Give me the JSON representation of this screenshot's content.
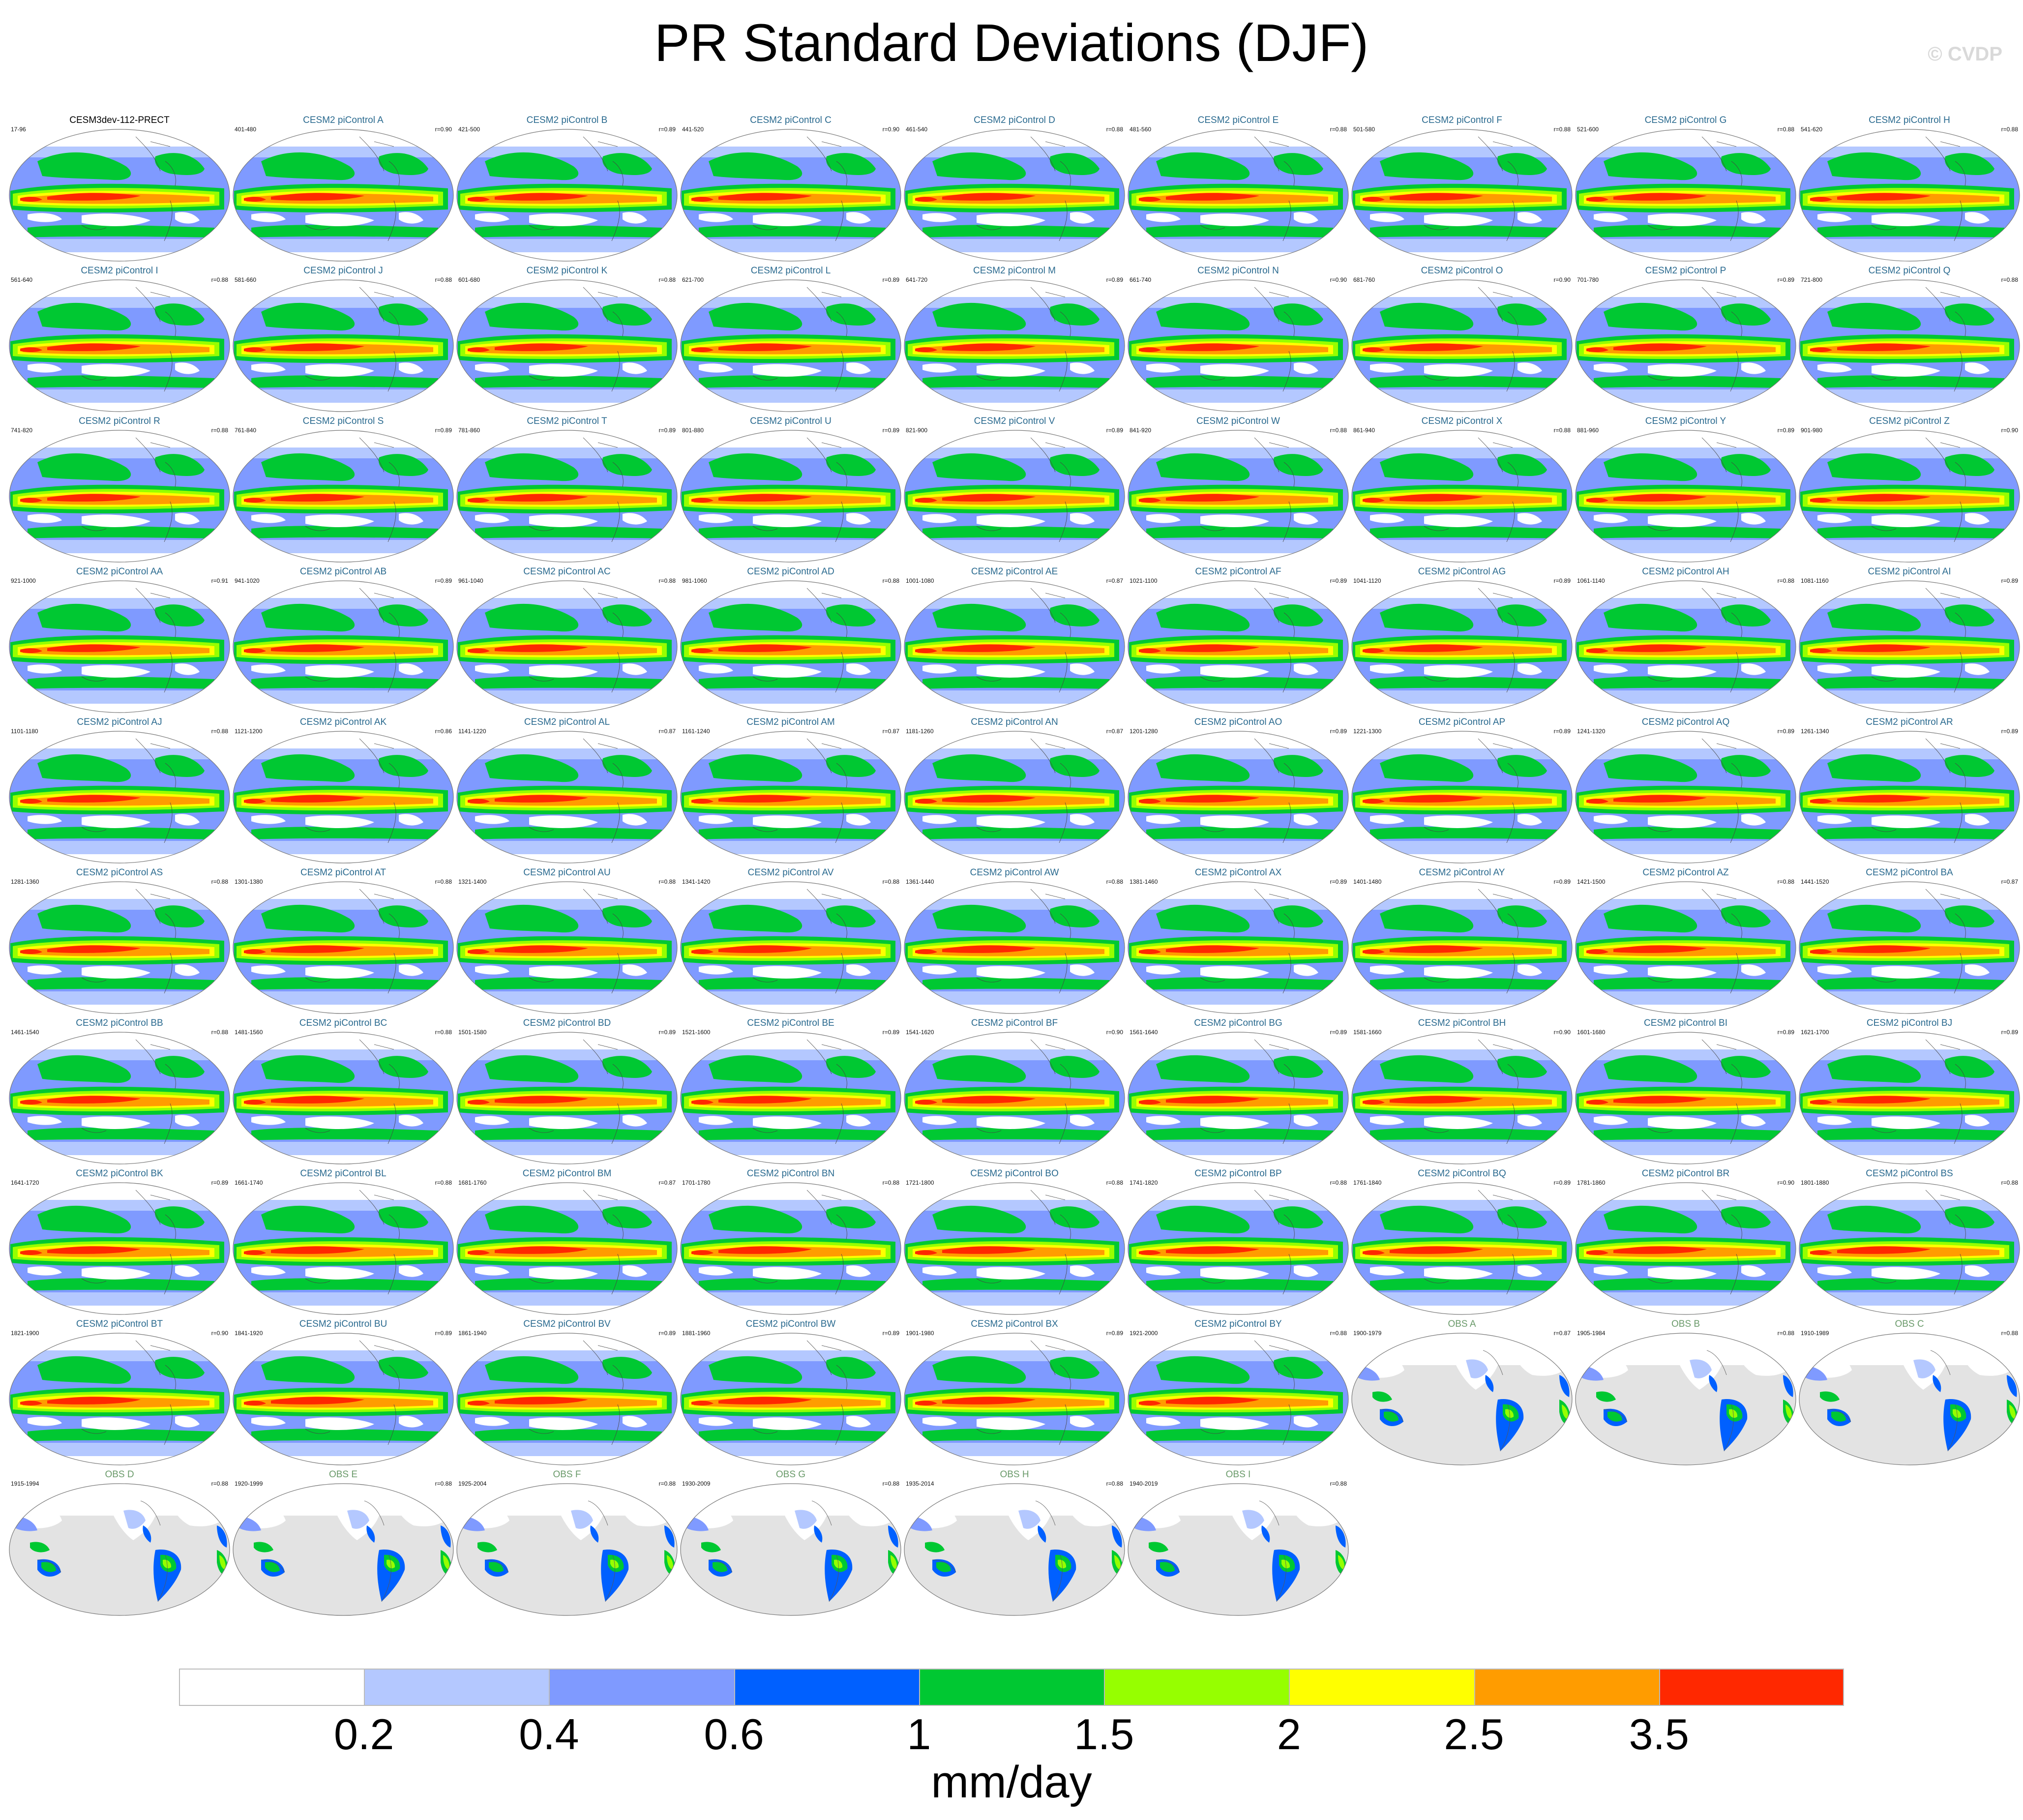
{
  "title": "PR Standard Deviations (DJF)",
  "copyright": "© CVDP",
  "chart_data": {
    "type": "heatmap",
    "title": "PR Standard Deviations (DJF)",
    "projection": "global map panels",
    "colorbar": {
      "unit": "mm/day",
      "levels": [
        "0.2",
        "0.4",
        "0.6",
        "1",
        "1.5",
        "2",
        "2.5",
        "3.5"
      ],
      "colors": [
        "#ffffff",
        "#b4c8ff",
        "#7f9aff",
        "#0060ff",
        "#00c832",
        "#96ff00",
        "#ffff00",
        "#ff9c00",
        "#ff2800"
      ]
    },
    "panels": [
      {
        "title": "CESM3dev-112-PRECT",
        "years": "17-96",
        "r": "",
        "kind": "first"
      },
      {
        "title": "CESM2 piControl A",
        "years": "401-480",
        "r": "r=0.90",
        "kind": "model"
      },
      {
        "title": "CESM2 piControl B",
        "years": "421-500",
        "r": "r=0.89",
        "kind": "model"
      },
      {
        "title": "CESM2 piControl C",
        "years": "441-520",
        "r": "r=0.90",
        "kind": "model"
      },
      {
        "title": "CESM2 piControl D",
        "years": "461-540",
        "r": "r=0.88",
        "kind": "model"
      },
      {
        "title": "CESM2 piControl E",
        "years": "481-560",
        "r": "r=0.88",
        "kind": "model"
      },
      {
        "title": "CESM2 piControl F",
        "years": "501-580",
        "r": "r=0.88",
        "kind": "model"
      },
      {
        "title": "CESM2 piControl G",
        "years": "521-600",
        "r": "r=0.88",
        "kind": "model"
      },
      {
        "title": "CESM2 piControl H",
        "years": "541-620",
        "r": "r=0.88",
        "kind": "model"
      },
      {
        "title": "CESM2 piControl I",
        "years": "561-640",
        "r": "r=0.88",
        "kind": "model"
      },
      {
        "title": "CESM2 piControl J",
        "years": "581-660",
        "r": "r=0.88",
        "kind": "model"
      },
      {
        "title": "CESM2 piControl K",
        "years": "601-680",
        "r": "r=0.88",
        "kind": "model"
      },
      {
        "title": "CESM2 piControl L",
        "years": "621-700",
        "r": "r=0.89",
        "kind": "model"
      },
      {
        "title": "CESM2 piControl M",
        "years": "641-720",
        "r": "r=0.89",
        "kind": "model"
      },
      {
        "title": "CESM2 piControl N",
        "years": "661-740",
        "r": "r=0.90",
        "kind": "model"
      },
      {
        "title": "CESM2 piControl O",
        "years": "681-760",
        "r": "r=0.90",
        "kind": "model"
      },
      {
        "title": "CESM2 piControl P",
        "years": "701-780",
        "r": "r=0.89",
        "kind": "model"
      },
      {
        "title": "CESM2 piControl Q",
        "years": "721-800",
        "r": "r=0.88",
        "kind": "model"
      },
      {
        "title": "CESM2 piControl R",
        "years": "741-820",
        "r": "r=0.88",
        "kind": "model"
      },
      {
        "title": "CESM2 piControl S",
        "years": "761-840",
        "r": "r=0.89",
        "kind": "model"
      },
      {
        "title": "CESM2 piControl T",
        "years": "781-860",
        "r": "r=0.89",
        "kind": "model"
      },
      {
        "title": "CESM2 piControl U",
        "years": "801-880",
        "r": "r=0.89",
        "kind": "model"
      },
      {
        "title": "CESM2 piControl V",
        "years": "821-900",
        "r": "r=0.89",
        "kind": "model"
      },
      {
        "title": "CESM2 piControl W",
        "years": "841-920",
        "r": "r=0.88",
        "kind": "model"
      },
      {
        "title": "CESM2 piControl X",
        "years": "861-940",
        "r": "r=0.88",
        "kind": "model"
      },
      {
        "title": "CESM2 piControl Y",
        "years": "881-960",
        "r": "r=0.89",
        "kind": "model"
      },
      {
        "title": "CESM2 piControl Z",
        "years": "901-980",
        "r": "r=0.90",
        "kind": "model"
      },
      {
        "title": "CESM2 piControl AA",
        "years": "921-1000",
        "r": "r=0.91",
        "kind": "model"
      },
      {
        "title": "CESM2 piControl AB",
        "years": "941-1020",
        "r": "r=0.89",
        "kind": "model"
      },
      {
        "title": "CESM2 piControl AC",
        "years": "961-1040",
        "r": "r=0.88",
        "kind": "model"
      },
      {
        "title": "CESM2 piControl AD",
        "years": "981-1060",
        "r": "r=0.88",
        "kind": "model"
      },
      {
        "title": "CESM2 piControl AE",
        "years": "1001-1080",
        "r": "r=0.87",
        "kind": "model"
      },
      {
        "title": "CESM2 piControl AF",
        "years": "1021-1100",
        "r": "r=0.89",
        "kind": "model"
      },
      {
        "title": "CESM2 piControl AG",
        "years": "1041-1120",
        "r": "r=0.89",
        "kind": "model"
      },
      {
        "title": "CESM2 piControl AH",
        "years": "1061-1140",
        "r": "r=0.88",
        "kind": "model"
      },
      {
        "title": "CESM2 piControl AI",
        "years": "1081-1160",
        "r": "r=0.89",
        "kind": "model"
      },
      {
        "title": "CESM2 piControl AJ",
        "years": "1101-1180",
        "r": "r=0.88",
        "kind": "model"
      },
      {
        "title": "CESM2 piControl AK",
        "years": "1121-1200",
        "r": "r=0.86",
        "kind": "model"
      },
      {
        "title": "CESM2 piControl AL",
        "years": "1141-1220",
        "r": "r=0.87",
        "kind": "model"
      },
      {
        "title": "CESM2 piControl AM",
        "years": "1161-1240",
        "r": "r=0.87",
        "kind": "model"
      },
      {
        "title": "CESM2 piControl AN",
        "years": "1181-1260",
        "r": "r=0.87",
        "kind": "model"
      },
      {
        "title": "CESM2 piControl AO",
        "years": "1201-1280",
        "r": "r=0.89",
        "kind": "model"
      },
      {
        "title": "CESM2 piControl AP",
        "years": "1221-1300",
        "r": "r=0.89",
        "kind": "model"
      },
      {
        "title": "CESM2 piControl AQ",
        "years": "1241-1320",
        "r": "r=0.89",
        "kind": "model"
      },
      {
        "title": "CESM2 piControl AR",
        "years": "1261-1340",
        "r": "r=0.89",
        "kind": "model"
      },
      {
        "title": "CESM2 piControl AS",
        "years": "1281-1360",
        "r": "r=0.88",
        "kind": "model"
      },
      {
        "title": "CESM2 piControl AT",
        "years": "1301-1380",
        "r": "r=0.88",
        "kind": "model"
      },
      {
        "title": "CESM2 piControl AU",
        "years": "1321-1400",
        "r": "r=0.88",
        "kind": "model"
      },
      {
        "title": "CESM2 piControl AV",
        "years": "1341-1420",
        "r": "r=0.88",
        "kind": "model"
      },
      {
        "title": "CESM2 piControl AW",
        "years": "1361-1440",
        "r": "r=0.88",
        "kind": "model"
      },
      {
        "title": "CESM2 piControl AX",
        "years": "1381-1460",
        "r": "r=0.89",
        "kind": "model"
      },
      {
        "title": "CESM2 piControl AY",
        "years": "1401-1480",
        "r": "r=0.89",
        "kind": "model"
      },
      {
        "title": "CESM2 piControl AZ",
        "years": "1421-1500",
        "r": "r=0.88",
        "kind": "model"
      },
      {
        "title": "CESM2 piControl BA",
        "years": "1441-1520",
        "r": "r=0.87",
        "kind": "model"
      },
      {
        "title": "CESM2 piControl BB",
        "years": "1461-1540",
        "r": "r=0.88",
        "kind": "model"
      },
      {
        "title": "CESM2 piControl BC",
        "years": "1481-1560",
        "r": "r=0.88",
        "kind": "model"
      },
      {
        "title": "CESM2 piControl BD",
        "years": "1501-1580",
        "r": "r=0.89",
        "kind": "model"
      },
      {
        "title": "CESM2 piControl BE",
        "years": "1521-1600",
        "r": "r=0.89",
        "kind": "model"
      },
      {
        "title": "CESM2 piControl BF",
        "years": "1541-1620",
        "r": "r=0.90",
        "kind": "model"
      },
      {
        "title": "CESM2 piControl BG",
        "years": "1561-1640",
        "r": "r=0.89",
        "kind": "model"
      },
      {
        "title": "CESM2 piControl BH",
        "years": "1581-1660",
        "r": "r=0.90",
        "kind": "model"
      },
      {
        "title": "CESM2 piControl BI",
        "years": "1601-1680",
        "r": "r=0.89",
        "kind": "model"
      },
      {
        "title": "CESM2 piControl BJ",
        "years": "1621-1700",
        "r": "r=0.89",
        "kind": "model"
      },
      {
        "title": "CESM2 piControl BK",
        "years": "1641-1720",
        "r": "r=0.89",
        "kind": "model"
      },
      {
        "title": "CESM2 piControl BL",
        "years": "1661-1740",
        "r": "r=0.88",
        "kind": "model"
      },
      {
        "title": "CESM2 piControl BM",
        "years": "1681-1760",
        "r": "r=0.87",
        "kind": "model"
      },
      {
        "title": "CESM2 piControl BN",
        "years": "1701-1780",
        "r": "r=0.88",
        "kind": "model"
      },
      {
        "title": "CESM2 piControl BO",
        "years": "1721-1800",
        "r": "r=0.88",
        "kind": "model"
      },
      {
        "title": "CESM2 piControl BP",
        "years": "1741-1820",
        "r": "r=0.88",
        "kind": "model"
      },
      {
        "title": "CESM2 piControl BQ",
        "years": "1761-1840",
        "r": "r=0.89",
        "kind": "model"
      },
      {
        "title": "CESM2 piControl BR",
        "years": "1781-1860",
        "r": "r=0.90",
        "kind": "model"
      },
      {
        "title": "CESM2 piControl BS",
        "years": "1801-1880",
        "r": "r=0.88",
        "kind": "model"
      },
      {
        "title": "CESM2 piControl BT",
        "years": "1821-1900",
        "r": "r=0.90",
        "kind": "model"
      },
      {
        "title": "CESM2 piControl BU",
        "years": "1841-1920",
        "r": "r=0.89",
        "kind": "model"
      },
      {
        "title": "CESM2 piControl BV",
        "years": "1861-1940",
        "r": "r=0.89",
        "kind": "model"
      },
      {
        "title": "CESM2 piControl BW",
        "years": "1881-1960",
        "r": "r=0.89",
        "kind": "model"
      },
      {
        "title": "CESM2 piControl BX",
        "years": "1901-1980",
        "r": "r=0.89",
        "kind": "model"
      },
      {
        "title": "CESM2 piControl BY",
        "years": "1921-2000",
        "r": "r=0.88",
        "kind": "model"
      },
      {
        "title": "OBS A",
        "years": "1900-1979",
        "r": "r=0.87",
        "kind": "obs"
      },
      {
        "title": "OBS B",
        "years": "1905-1984",
        "r": "r=0.88",
        "kind": "obs"
      },
      {
        "title": "OBS C",
        "years": "1910-1989",
        "r": "r=0.88",
        "kind": "obs"
      },
      {
        "title": "OBS D",
        "years": "1915-1994",
        "r": "r=0.88",
        "kind": "obs"
      },
      {
        "title": "OBS E",
        "years": "1920-1999",
        "r": "r=0.88",
        "kind": "obs"
      },
      {
        "title": "OBS F",
        "years": "1925-2004",
        "r": "r=0.88",
        "kind": "obs"
      },
      {
        "title": "OBS G",
        "years": "1930-2009",
        "r": "r=0.88",
        "kind": "obs"
      },
      {
        "title": "OBS H",
        "years": "1935-2014",
        "r": "r=0.88",
        "kind": "obs"
      },
      {
        "title": "OBS I",
        "years": "1940-2019",
        "r": "r=0.88",
        "kind": "obs"
      }
    ]
  }
}
